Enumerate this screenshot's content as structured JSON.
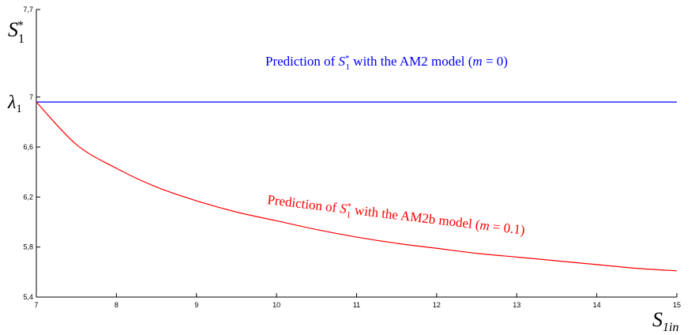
{
  "chart_data": {
    "type": "line",
    "title": "",
    "xlabel": "S1in",
    "ylabel": "S1*",
    "xlim": [
      7,
      15
    ],
    "ylim": [
      5.4,
      7.7
    ],
    "x_ticks": [
      7,
      8,
      9,
      10,
      11,
      12,
      13,
      14,
      15
    ],
    "y_ticks": [
      5.4,
      5.8,
      6.2,
      6.6,
      7,
      7.7
    ],
    "y_tick_labels": [
      "5,4",
      "5,8",
      "6,2",
      "6,6",
      "7",
      "7,7"
    ],
    "x_tick_labels": [
      "7",
      "8",
      "9",
      "10",
      "11",
      "12",
      "13",
      "14",
      "15"
    ],
    "lambda_label": "λ1",
    "grid": false,
    "series": [
      {
        "name": "Prediction of S1* with the AM2 model (m = 0)",
        "color": "#0000ff",
        "x": [
          7,
          15
        ],
        "y": [
          6.96,
          6.96
        ]
      },
      {
        "name": "Prediction of S1* with the AM2b model (m = 0.1)",
        "color": "#ff0000",
        "x": [
          7,
          7.5,
          8,
          8.5,
          9,
          9.5,
          10,
          10.5,
          11,
          11.5,
          12,
          12.5,
          13,
          13.5,
          14,
          14.5,
          15
        ],
        "y": [
          6.96,
          6.62,
          6.43,
          6.28,
          6.17,
          6.08,
          6.01,
          5.94,
          5.88,
          5.83,
          5.79,
          5.75,
          5.72,
          5.69,
          5.66,
          5.63,
          5.61
        ]
      }
    ],
    "annotations": [
      {
        "text": "Prediction of S1* with the AM2 model (m = 0)",
        "color": "#0000ff"
      },
      {
        "text": "Prediction of S1* with the AM2b model (m = 0.1)",
        "color": "#ff0000"
      }
    ]
  }
}
